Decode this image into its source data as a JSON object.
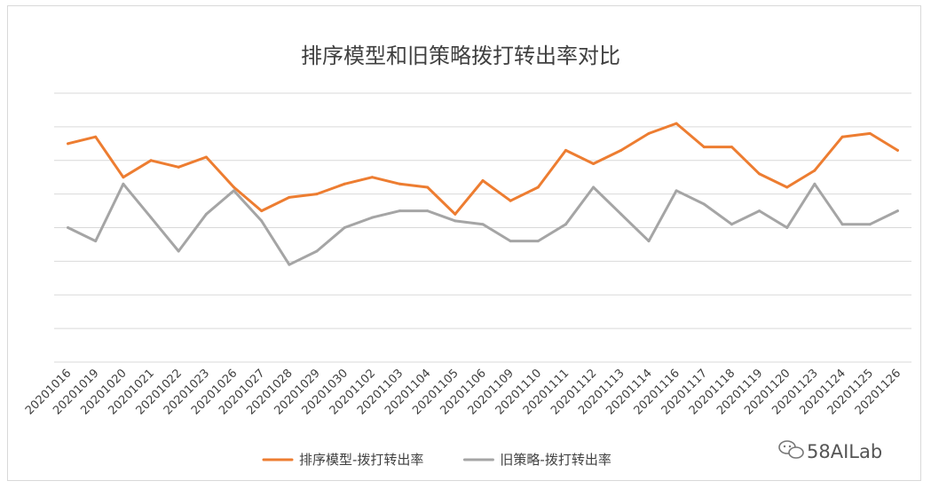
{
  "chart_data": {
    "type": "line",
    "title": "排序模型和旧策略拨打转出率对比",
    "categories": [
      "20201016",
      "20201019",
      "20201020",
      "20201021",
      "20201022",
      "20201023",
      "20201026",
      "20201027",
      "20201028",
      "20201029",
      "20201030",
      "20201102",
      "20201103",
      "20201104",
      "20201105",
      "20201106",
      "20201109",
      "20201110",
      "20201111",
      "20201112",
      "20201113",
      "20201114",
      "20201116",
      "20201117",
      "20201118",
      "20201119",
      "20201120",
      "20201123",
      "20201124",
      "20201125",
      "20201126"
    ],
    "series": [
      {
        "name": "排序模型-拨打转出率",
        "color": "#ED7D31",
        "values": [
          6.5,
          6.7,
          5.5,
          6.0,
          5.8,
          6.1,
          5.2,
          4.5,
          4.9,
          5.0,
          5.3,
          5.5,
          5.3,
          5.2,
          4.4,
          5.4,
          4.8,
          5.2,
          6.3,
          5.9,
          6.3,
          6.8,
          7.1,
          6.4,
          6.4,
          5.6,
          5.2,
          5.7,
          6.7,
          6.8,
          6.3
        ]
      },
      {
        "name": "旧策略-拨打转出率",
        "color": "#A5A5A5",
        "values": [
          4.0,
          3.6,
          5.3,
          4.3,
          3.3,
          4.4,
          5.1,
          4.2,
          2.9,
          3.3,
          4.0,
          4.3,
          4.5,
          4.5,
          4.2,
          4.1,
          3.6,
          3.6,
          4.1,
          5.2,
          4.4,
          3.6,
          5.1,
          4.7,
          4.1,
          4.5,
          4.0,
          5.3,
          4.1,
          4.1,
          4.5
        ]
      }
    ],
    "ylim": [
      0,
      8
    ],
    "grid": true,
    "legend": "bottom"
  },
  "watermark": {
    "text": "58AILab"
  }
}
